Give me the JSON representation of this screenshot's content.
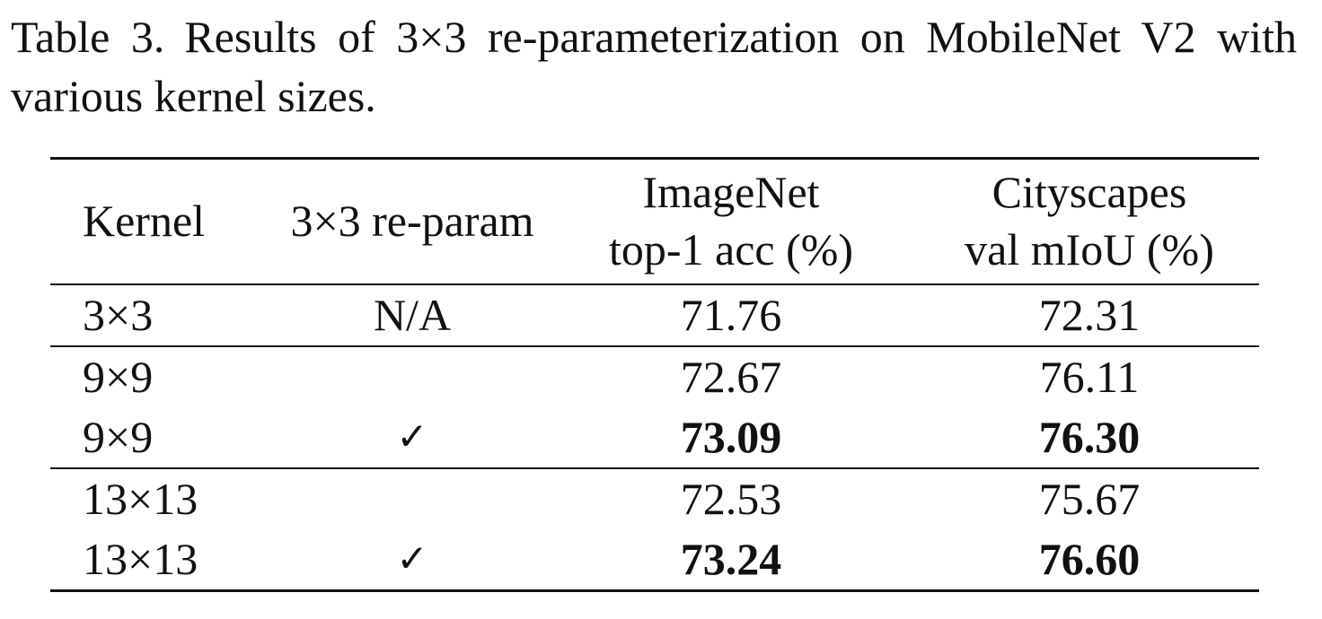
{
  "caption": {
    "label": "Table 3.",
    "text": "Results of 3×3 re-parameterization on MobileNet V2 with various kernel sizes."
  },
  "table": {
    "headers": {
      "kernel": "Kernel",
      "reparam": "3×3 re-param",
      "imagenet_line1": "ImageNet",
      "imagenet_line2": "top-1 acc (%)",
      "city_line1": "Cityscapes",
      "city_line2": "val mIoU (%)"
    },
    "rows": [
      {
        "kernel": "3×3",
        "reparam": "N/A",
        "imagenet": "71.76",
        "cityscapes": "72.31",
        "bold": false,
        "group_start": false
      },
      {
        "kernel": "9×9",
        "reparam": "",
        "imagenet": "72.67",
        "cityscapes": "76.11",
        "bold": false,
        "group_start": true
      },
      {
        "kernel": "9×9",
        "reparam": "✓",
        "imagenet": "73.09",
        "cityscapes": "76.30",
        "bold": true,
        "group_start": false
      },
      {
        "kernel": "13×13",
        "reparam": "",
        "imagenet": "72.53",
        "cityscapes": "75.67",
        "bold": false,
        "group_start": true
      },
      {
        "kernel": "13×13",
        "reparam": "✓",
        "imagenet": "73.24",
        "cityscapes": "76.60",
        "bold": true,
        "group_start": false
      }
    ]
  }
}
